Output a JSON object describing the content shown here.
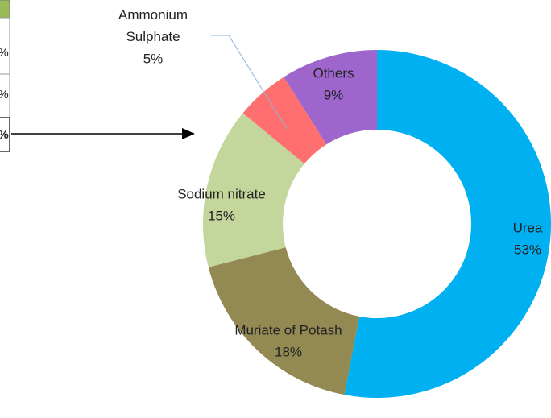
{
  "table": {
    "cells": [
      "%",
      "%",
      "%"
    ]
  },
  "chart_data": {
    "type": "donut",
    "categories": [
      "Urea",
      "Muriate of Potash",
      "Sodium nitrate",
      "Ammonium Sulphate",
      "Others"
    ],
    "values": [
      53,
      18,
      15,
      5,
      9
    ],
    "value_labels": [
      "53%",
      "18%",
      "15%",
      "5%",
      "9%"
    ],
    "colors": [
      "#00b0f0",
      "#938953",
      "#c3d69b",
      "#ff6f6f",
      "#9e66cc"
    ]
  }
}
